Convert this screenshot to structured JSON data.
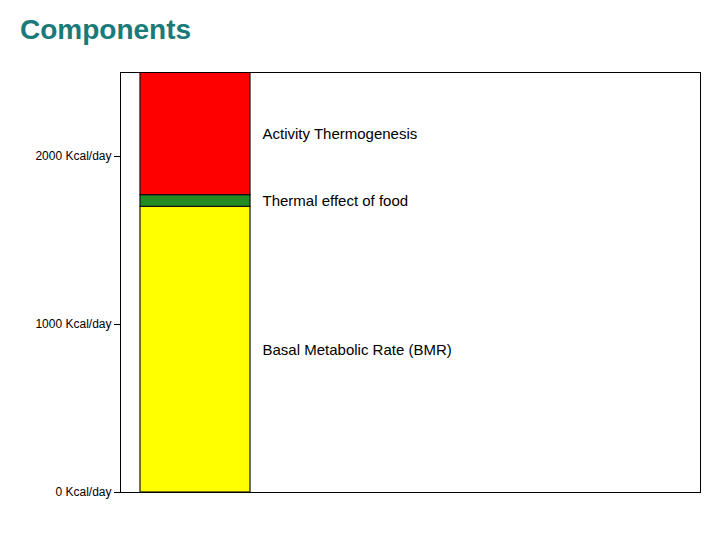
{
  "chart_data": {
    "type": "bar",
    "stacked": true,
    "title": "Components",
    "categories": [
      null
    ],
    "series": [
      {
        "name": "Basal Metabolic Rate (BMR)",
        "color": "#ffff00",
        "values": [
          1700
        ]
      },
      {
        "name": "Thermal effect of food",
        "color": "#228B22",
        "values": [
          70
        ]
      },
      {
        "name": "Activity Thermogenesis",
        "color": "#ff0000",
        "values": [
          730
        ]
      }
    ],
    "ylim": [
      0,
      2500
    ],
    "yticks": [
      {
        "value": 0,
        "label": "0 Kcal/day"
      },
      {
        "value": 1000,
        "label": "1000 Kcal/day"
      },
      {
        "value": 2000,
        "label": "2000 Kcal/day"
      }
    ],
    "grid": false
  }
}
